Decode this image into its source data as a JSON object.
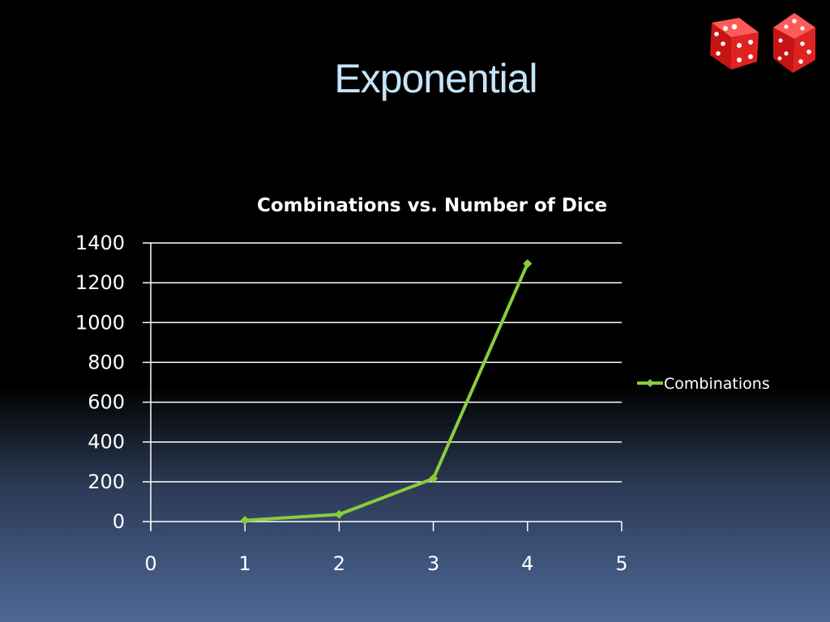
{
  "slide": {
    "title": "Exponential"
  },
  "colors": {
    "series": "#8acc3c",
    "grid": "#ffffff",
    "die": "#e02020"
  },
  "decorations": {
    "icons": [
      "dice-icon",
      "dice-icon"
    ]
  },
  "chart_data": {
    "type": "scatter",
    "title": "Combinations vs. Number of Dice",
    "xlabel": "",
    "ylabel": "",
    "xlim": [
      0,
      5
    ],
    "ylim": [
      0,
      1400
    ],
    "x_ticks": [
      "0",
      "1",
      "2",
      "3",
      "4",
      "5"
    ],
    "y_ticks": [
      "0",
      "200",
      "400",
      "600",
      "800",
      "1000",
      "1200",
      "1400"
    ],
    "grid": true,
    "legend_position": "right",
    "series": [
      {
        "name": "Combinations",
        "x": [
          1,
          2,
          3,
          4
        ],
        "y": [
          6,
          36,
          216,
          1296
        ]
      }
    ]
  }
}
